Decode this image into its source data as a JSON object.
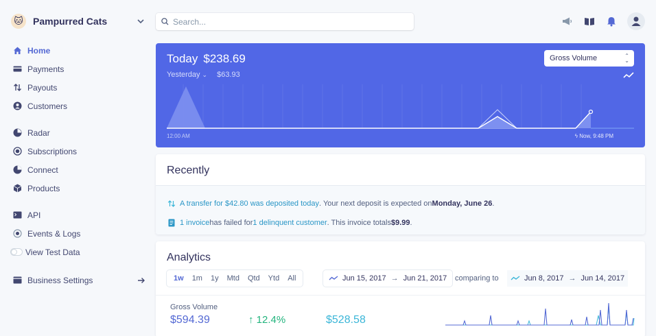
{
  "account": {
    "name": "Pampurred Cats",
    "logo": "cat-logo"
  },
  "search": {
    "placeholder": "Search..."
  },
  "nav": {
    "primary": [
      {
        "label": "Home",
        "icon": "home-icon",
        "active": true
      },
      {
        "label": "Payments",
        "icon": "payments-icon"
      },
      {
        "label": "Payouts",
        "icon": "payouts-icon"
      },
      {
        "label": "Customers",
        "icon": "customers-icon"
      }
    ],
    "products": [
      {
        "label": "Radar",
        "icon": "radar-icon"
      },
      {
        "label": "Subscriptions",
        "icon": "subscriptions-icon"
      },
      {
        "label": "Connect",
        "icon": "connect-icon"
      },
      {
        "label": "Products",
        "icon": "products-icon"
      }
    ],
    "developers": [
      {
        "label": "API",
        "icon": "terminal-icon"
      },
      {
        "label": "Events & Logs",
        "icon": "events-icon"
      },
      {
        "label": "View Test Data",
        "icon": "toggle-icon"
      }
    ],
    "settings": {
      "label": "Business Settings",
      "icon": "settings-icon"
    }
  },
  "today": {
    "label": "Today",
    "amount": "$238.69",
    "yesterday_label": "Yesterday",
    "yesterday_amount": "$63.93",
    "metric_select": "Gross Volume",
    "time_start": "12:00 AM",
    "time_now": "Now, 9:48 PM"
  },
  "recently": {
    "title": "Recently",
    "transfer": {
      "link": "A transfer for $42.80 was deposited today",
      "text": ". Your next deposit is expected on ",
      "date": "Monday, June 26",
      "end": "."
    },
    "invoice": {
      "link1": "1 invoice",
      "mid": " has failed for ",
      "link2": "1 delinquent customer",
      "text": ". This invoice totals ",
      "amount": "$9.99",
      "end": "."
    }
  },
  "analytics": {
    "title": "Analytics",
    "ranges": [
      "1w",
      "1m",
      "1y",
      "Mtd",
      "Qtd",
      "Ytd",
      "All"
    ],
    "active_range": "1w",
    "date_from": "Jun 15, 2017",
    "date_to": "Jun 21, 2017",
    "comparing_label": "comparing to",
    "compare_from": "Jun 8, 2017",
    "compare_to": "Jun 14, 2017",
    "metric_label": "Gross Volume",
    "metric_value": "$594.39",
    "change": "12.4%",
    "compare_value": "$528.58"
  },
  "colors": {
    "accent": "#5469d4",
    "today_bg": "#5167e6",
    "positive": "#24b47e",
    "compare": "#3bb6d8"
  }
}
